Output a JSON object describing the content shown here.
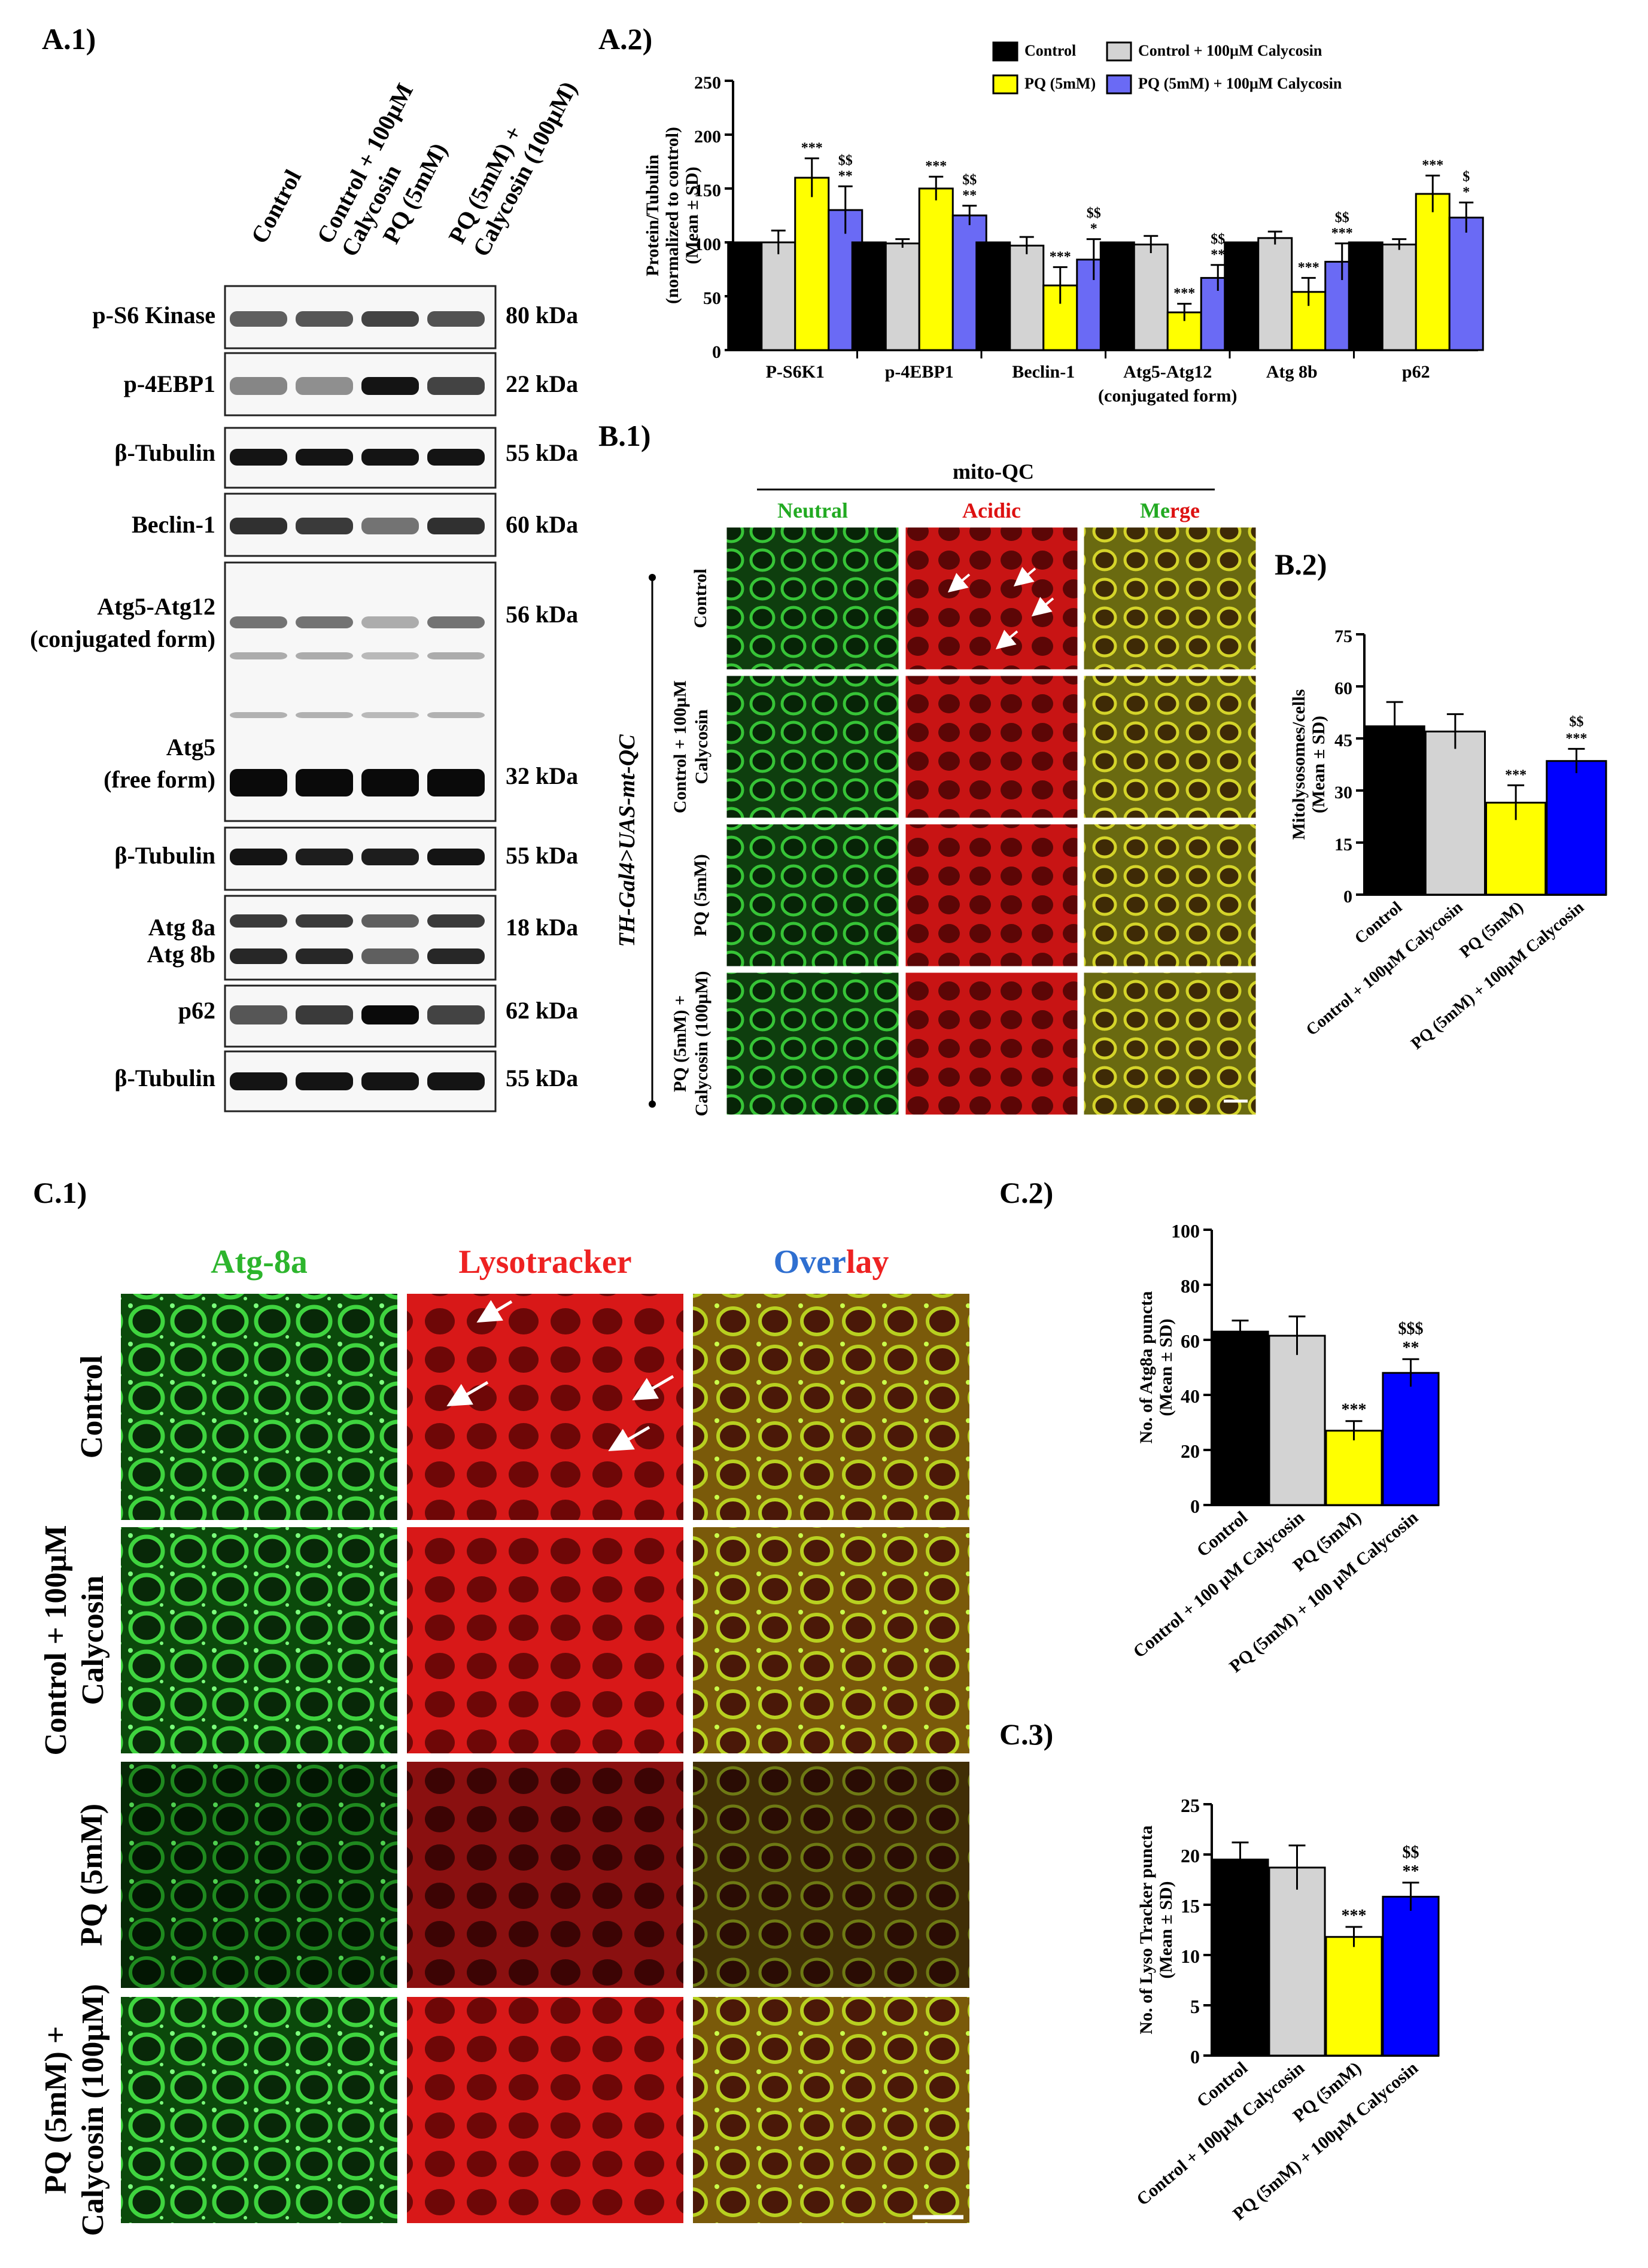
{
  "panel_labels": {
    "a1": "A.1)",
    "a2": "A.2)",
    "b1": "B.1)",
    "b2": "B.2)",
    "c1": "C.1)",
    "c2": "C.2)",
    "c3": "C.3)"
  },
  "conditions": [
    "Control",
    "Control + 100µM Calycosin",
    "PQ (5mM)",
    "PQ (5mM) + Calycosin (100µM)"
  ],
  "colors": {
    "control": "#000000",
    "calycosin": "#d3d3d3",
    "pq": "#ffff00",
    "pq_calycosin_a2": "#6a6af5",
    "pq_calycosin": "#0000ff"
  },
  "blot": {
    "lane_labels": [
      [
        "Control"
      ],
      [
        "Control + 100µM",
        "Calycosin"
      ],
      [
        "PQ (5mM)"
      ],
      [
        "PQ (5mM) +",
        "Calycosin (100µM)"
      ]
    ],
    "rows": [
      {
        "label": [
          "p-S6 Kinase"
        ],
        "kda": "80 kDa"
      },
      {
        "label": [
          "p-4EBP1"
        ],
        "kda": "22 kDa"
      },
      {
        "label": [
          "β-Tubulin"
        ],
        "kda": "55 kDa"
      },
      {
        "label": [
          "Beclin-1"
        ],
        "kda": "60 kDa"
      },
      {
        "label": [
          "Atg5-Atg12",
          "(conjugated form)"
        ],
        "kda": "56 kDa"
      },
      {
        "label": [
          "Atg5",
          "(free form)"
        ],
        "kda": "32 kDa"
      },
      {
        "label": [
          "β-Tubulin"
        ],
        "kda": "55 kDa"
      },
      {
        "label": [
          "Atg 8a"
        ],
        "kda": "18 kDa"
      },
      {
        "label": [
          "Atg 8b"
        ],
        "kda": ""
      },
      {
        "label": [
          "p62"
        ],
        "kda": "62 kDa"
      },
      {
        "label": [
          "β-Tubulin"
        ],
        "kda": "55 kDa"
      }
    ],
    "band_intensity": {
      "ps6k": [
        0.55,
        0.6,
        0.7,
        0.62
      ],
      "p4ebp1": [
        0.35,
        0.3,
        0.95,
        0.7
      ],
      "beclin": [
        0.8,
        0.75,
        0.45,
        0.8
      ],
      "atg512": [
        0.45,
        0.45,
        0.15,
        0.45
      ],
      "atg8b": [
        0.85,
        0.85,
        0.55,
        0.85
      ],
      "p62": [
        0.6,
        0.75,
        1.0,
        0.7
      ]
    }
  },
  "micro_b1": {
    "group_title": "mito-QC",
    "col_titles": [
      "Neutral",
      "Acidic",
      "Merge"
    ],
    "genotype": "TH-Gal4>UAS-mt-QC",
    "row_labels": [
      [
        "Control"
      ],
      [
        "Control + 100µM",
        "Calycosin"
      ],
      [
        "PQ (5mM)"
      ],
      [
        "PQ (5mM) +",
        "Calycosin (100µM)"
      ]
    ]
  },
  "micro_c1": {
    "col_titles": [
      [
        {
          "t": "Atg-8a",
          "c": "#2db52d"
        }
      ],
      [
        {
          "t": "Lysotracker",
          "c": "#ee2222"
        }
      ],
      [
        {
          "t": "Over",
          "c": "#2f6fd0"
        },
        {
          "t": "lay",
          "c": "#ee2222"
        }
      ]
    ],
    "row_labels": [
      [
        "Control"
      ],
      [
        "Control + 100µM",
        "Calycosin"
      ],
      [
        "PQ (5mM)"
      ],
      [
        "PQ (5mM) +",
        "Calycosin (100µM)"
      ]
    ]
  },
  "chart_data": [
    {
      "id": "A.2",
      "type": "bar",
      "ylabel": [
        "Protein/Tubulin",
        "(normalized to control)",
        "(Mean ± SD)"
      ],
      "ylim": [
        0,
        250
      ],
      "yticks": [
        0,
        50,
        100,
        150,
        200,
        250
      ],
      "categories": [
        [
          "P-S6K1"
        ],
        [
          "p-4EBP1"
        ],
        [
          "Beclin-1"
        ],
        [
          "Atg5-Atg12",
          "(conjugated form)"
        ],
        [
          "Atg 8b"
        ],
        [
          "p62"
        ]
      ],
      "legend": [
        "Control",
        "Control + 100µM Calycosin",
        "PQ (5mM)",
        "PQ (5mM) + 100µM Calycosin"
      ],
      "series": [
        {
          "name": "Control",
          "values": [
            100,
            100,
            100,
            100,
            100,
            100
          ],
          "err": [
            0,
            0,
            0,
            0,
            0,
            0
          ]
        },
        {
          "name": "Control + 100µM Calycosin",
          "values": [
            100,
            99,
            97,
            98,
            104,
            98
          ],
          "err": [
            11,
            4,
            8,
            8,
            6,
            5
          ]
        },
        {
          "name": "PQ (5mM)",
          "values": [
            160,
            150,
            60,
            35,
            54,
            145
          ],
          "err": [
            18,
            11,
            17,
            8,
            13,
            17
          ]
        },
        {
          "name": "PQ (5mM) + 100µM Calycosin",
          "values": [
            130,
            125,
            84,
            67,
            82,
            123
          ],
          "err": [
            22,
            9,
            19,
            12,
            17,
            14
          ]
        }
      ],
      "annotations": [
        [
          "",
          "",
          "***",
          ""
        ],
        [
          "",
          "",
          "***",
          ""
        ],
        [
          "",
          "",
          "***",
          ""
        ],
        [
          "",
          "",
          "***",
          ""
        ],
        [
          "",
          "",
          "***",
          ""
        ],
        [
          "",
          "",
          "***",
          ""
        ]
      ],
      "annotations_pqc": [
        [
          "$$",
          "**"
        ],
        [
          "$$",
          "**"
        ],
        [
          "$$",
          "*"
        ],
        [
          "$$",
          "**"
        ],
        [
          "$$",
          "***"
        ],
        [
          "$",
          "*"
        ]
      ]
    },
    {
      "id": "B.2",
      "type": "bar",
      "ylabel": [
        "Mitolysosomes/cells",
        "(Mean ± SD)"
      ],
      "ylim": [
        0,
        75
      ],
      "yticks": [
        0,
        15,
        30,
        45,
        60,
        75
      ],
      "categories": [
        "Control",
        "Control + 100µM Calycosin",
        "PQ (5mM)",
        "PQ (5mM) + 100µM Calycosin"
      ],
      "values": [
        48.5,
        47,
        26.5,
        38.5
      ],
      "err": [
        7,
        5,
        5,
        3.5
      ],
      "annotations": [
        [
          ""
        ],
        [
          ""
        ],
        [
          "***"
        ],
        [
          "$$",
          "***"
        ]
      ]
    },
    {
      "id": "C.2",
      "type": "bar",
      "ylabel": [
        "No. of Atg8a puncta",
        "(Mean ± SD)"
      ],
      "ylim": [
        0,
        100
      ],
      "yticks": [
        0,
        20,
        40,
        60,
        80,
        100
      ],
      "categories": [
        "Control",
        "Control + 100 µM Calycosin",
        "PQ (5mM)",
        "PQ (5mM) + 100 µM Calycosin"
      ],
      "values": [
        63,
        61.5,
        27,
        48
      ],
      "err": [
        4,
        7,
        3.5,
        5
      ],
      "annotations": [
        [
          ""
        ],
        [
          ""
        ],
        [
          "***"
        ],
        [
          "$$$",
          "**"
        ]
      ]
    },
    {
      "id": "C.3",
      "type": "bar",
      "ylabel": [
        "No. of Lyso Tracker puncta",
        "(Mean ± SD)"
      ],
      "ylim": [
        0,
        25
      ],
      "yticks": [
        0,
        5,
        10,
        15,
        20,
        25
      ],
      "categories": [
        "Control",
        "Control + 100µM Calycosin",
        "PQ (5mM)",
        "PQ (5mM) + 100µM Calycosin"
      ],
      "values": [
        19.5,
        18.7,
        11.8,
        15.8
      ],
      "err": [
        1.7,
        2.2,
        1.0,
        1.4
      ],
      "annotations": [
        [
          ""
        ],
        [
          ""
        ],
        [
          "***"
        ],
        [
          "$$",
          "**"
        ]
      ]
    }
  ]
}
